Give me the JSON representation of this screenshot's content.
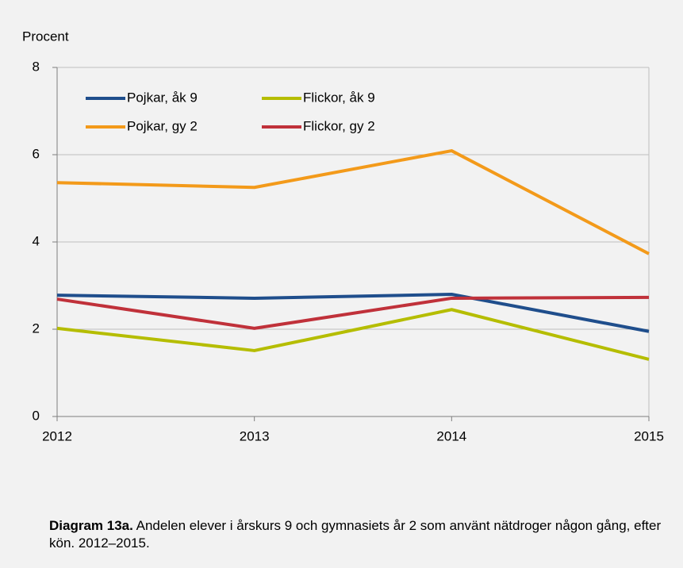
{
  "chart_data": {
    "type": "line",
    "ylabel": "Procent",
    "x": [
      2012,
      2013,
      2014,
      2015
    ],
    "xlim": [
      2012,
      2015
    ],
    "xticks": [
      2012,
      2013,
      2014,
      2015
    ],
    "ylim": [
      0,
      8
    ],
    "yticks": [
      0,
      2,
      4,
      6,
      8
    ],
    "grid": true,
    "legend": "top-left",
    "series": [
      {
        "name": "Pojkar, åk 9",
        "color": "#1f4e8c",
        "values": [
          2.78,
          2.71,
          2.8,
          1.95
        ]
      },
      {
        "name": "Flickor, åk 9",
        "color": "#b5bd00",
        "values": [
          2.02,
          1.51,
          2.45,
          1.31
        ]
      },
      {
        "name": "Pojkar, gy 2",
        "color": "#f39a1a",
        "values": [
          5.36,
          5.25,
          6.09,
          3.73
        ]
      },
      {
        "name": "Flickor, gy 2",
        "color": "#c0313a",
        "values": [
          2.69,
          2.02,
          2.71,
          2.73
        ]
      }
    ],
    "caption_label": "Diagram 13a.",
    "caption": "Andelen elever i årskurs 9 och gymnasiets år 2 som använt nätdroger någon gång, efter kön. 2012–2015."
  }
}
